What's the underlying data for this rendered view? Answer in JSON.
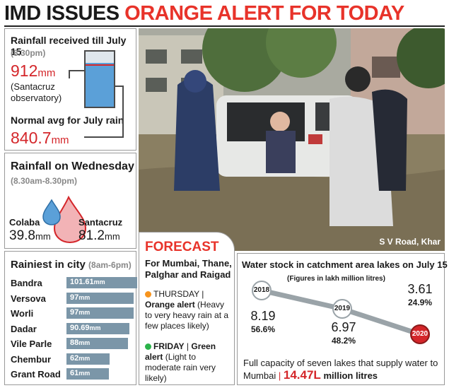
{
  "headline": {
    "part1": "IMD ISSUES",
    "part2": "ORANGE ALERT FOR TODAY"
  },
  "rainfall_received": {
    "title": "Rainfall received till July 15",
    "time": "(8.30pm)",
    "value": "912",
    "unit": "mm",
    "station": "(Santacruz observatory)",
    "normal_title": "Normal avg for July rain",
    "normal_value": "840.7",
    "normal_unit": "mm"
  },
  "wednesday": {
    "title": "Rainfall on Wednesday",
    "time": "(8.30am-8.30pm)",
    "colaba_label": "Colaba",
    "colaba_value": "39.8",
    "santacruz_label": "Santacruz",
    "santacruz_value": "81.2",
    "unit": "mm"
  },
  "rainiest": {
    "title": "Rainiest in city",
    "time": "(8am-6pm)",
    "unit": "mm",
    "items": [
      {
        "name": "Bandra",
        "value": "101.61",
        "num": 101.61
      },
      {
        "name": "Versova",
        "value": "97",
        "num": 97
      },
      {
        "name": "Worli",
        "value": "97",
        "num": 97
      },
      {
        "name": "Dadar",
        "value": "90.69",
        "num": 90.69
      },
      {
        "name": "Vile Parle",
        "value": "88",
        "num": 88
      },
      {
        "name": "Chembur",
        "value": "62",
        "num": 62
      },
      {
        "name": "Grant Road",
        "value": "61",
        "num": 61
      }
    ]
  },
  "photo": {
    "caption": "S V Road, Khar"
  },
  "forecast": {
    "title": "FORECAST",
    "regions": "For Mumbai, Thane, Palghar and Raigad",
    "day1": "THURSDAY",
    "alert1": "Orange alert",
    "desc1": "(Heavy to very heavy rain at a few places likely)",
    "day2": "FRIDAY",
    "alert2": "Green alert",
    "desc2": "(Light to moderate rain very likely)",
    "orange_color": "#f7941d",
    "green_color": "#2bb34a"
  },
  "water_stock": {
    "title": "Water stock in catchment area lakes on July 15",
    "note": "(Figures in lakh million litres)",
    "years": [
      {
        "year": "2018",
        "value": "8.19",
        "pct": "56.6%"
      },
      {
        "year": "2019",
        "value": "6.97",
        "pct": "48.2%"
      },
      {
        "year": "2020",
        "value": "3.61",
        "pct": "24.9%"
      }
    ],
    "capacity_text": "Full capacity of seven lakes that supply water to Mumbai",
    "capacity_value": "14.47L",
    "capacity_unit": "million litres"
  }
}
